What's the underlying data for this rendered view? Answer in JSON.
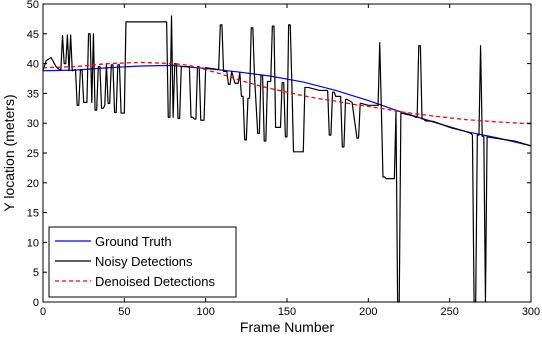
{
  "chart_data": {
    "type": "line",
    "title": "",
    "xlabel": "Frame Number",
    "ylabel": "Y location (meters)",
    "xlim": [
      0,
      300
    ],
    "ylim": [
      0,
      50
    ],
    "xticks": [
      0,
      50,
      100,
      150,
      200,
      250,
      300
    ],
    "yticks": [
      0,
      5,
      10,
      15,
      20,
      25,
      30,
      35,
      40,
      45,
      50
    ],
    "grid": false,
    "legend_position": "bottom-left",
    "series": [
      {
        "name": "Ground Truth",
        "color": "#0000ff",
        "style": "solid",
        "x": [
          0,
          20,
          40,
          60,
          80,
          90,
          100,
          120,
          140,
          160,
          180,
          200,
          220,
          240,
          260,
          280,
          300
        ],
        "y": [
          38.8,
          38.9,
          39.3,
          39.6,
          39.7,
          39.4,
          39.2,
          38.6,
          37.9,
          36.9,
          35.5,
          33.8,
          31.9,
          30.2,
          28.6,
          27.5,
          26.2
        ]
      },
      {
        "name": "Noisy Detections",
        "color": "#000000",
        "style": "solid",
        "x": [
          0,
          2,
          5,
          8,
          10,
          11,
          12,
          13,
          14,
          15,
          16,
          17,
          18,
          20,
          21,
          22,
          23,
          24,
          25,
          27,
          28,
          29,
          30,
          31,
          32,
          33,
          34,
          35,
          36,
          37,
          38,
          39,
          40,
          41,
          42,
          43,
          44,
          45,
          46,
          47,
          48,
          49,
          50,
          51,
          52,
          53,
          60,
          70,
          76,
          77,
          78,
          79,
          80,
          81,
          82,
          83,
          84,
          85,
          90,
          91,
          92,
          93,
          94,
          95,
          96,
          97,
          98,
          99,
          100,
          108,
          109,
          110,
          111,
          113,
          114,
          115,
          116,
          118,
          120,
          121,
          122,
          123,
          124,
          125,
          126,
          127,
          128,
          129,
          130,
          132,
          133,
          134,
          135,
          136,
          137,
          138,
          140,
          141,
          142,
          143,
          146,
          147,
          148,
          149,
          150,
          151,
          152,
          153,
          154,
          155,
          160,
          161,
          162,
          163,
          170,
          175,
          176,
          177,
          178,
          179,
          180,
          183,
          184,
          185,
          186,
          187,
          190,
          193,
          194,
          195,
          196,
          200,
          205,
          206,
          207,
          208,
          209,
          210,
          211,
          216,
          217,
          218,
          219,
          220,
          225,
          228,
          229,
          230,
          231,
          232,
          233,
          234,
          235,
          240,
          250,
          260,
          263,
          264,
          265,
          266,
          267,
          268,
          269,
          270,
          271,
          272,
          273,
          280,
          290,
          300
        ],
        "y": [
          38.8,
          40.5,
          41,
          39.5,
          39,
          39,
          44.7,
          40,
          40,
          44.8,
          38.8,
          44.8,
          38.8,
          39,
          33,
          33,
          39,
          39,
          33.5,
          33.5,
          45,
          45,
          33.5,
          45,
          32.2,
          32.2,
          39.5,
          39.5,
          32.5,
          32.5,
          33,
          40,
          33.3,
          33.3,
          39.8,
          39.8,
          31.8,
          31.8,
          39.8,
          39.8,
          31.7,
          31.7,
          31.7,
          47,
          47,
          47,
          47,
          47,
          47,
          31,
          31,
          48,
          31,
          40,
          40,
          30.8,
          30.8,
          39.5,
          39.5,
          31,
          31,
          30.7,
          30.7,
          39.5,
          39.5,
          30.5,
          30.5,
          30.5,
          39.3,
          39,
          46.5,
          46.5,
          38.7,
          38.7,
          36.5,
          36.5,
          38.7,
          36.7,
          36.7,
          38.5,
          34.5,
          34.5,
          27.2,
          27.2,
          34.2,
          34.2,
          46,
          46,
          38,
          28.3,
          28.3,
          38,
          38,
          27,
          27,
          37,
          37,
          46.3,
          46.3,
          29.3,
          29.3,
          36.8,
          36.8,
          27.7,
          27.7,
          46.5,
          46.5,
          36.5,
          25.2,
          25.2,
          25.2,
          36,
          36,
          36,
          35.5,
          35.5,
          28,
          28,
          35.2,
          35.2,
          34.5,
          34.5,
          26,
          26,
          34,
          34,
          33.5,
          27.5,
          27.5,
          33.3,
          33.3,
          33,
          33,
          33,
          43.5,
          32.5,
          21,
          21,
          20.7,
          20.7,
          32,
          0,
          0,
          31.7,
          31.4,
          31.2,
          31,
          31,
          43,
          43,
          30.7,
          30.7,
          30.4,
          30.3,
          29.3,
          28.6,
          28.3,
          28,
          0,
          0,
          28,
          28,
          43,
          27.8,
          27.8,
          0,
          27.7,
          27.4,
          27,
          26.2
        ]
      },
      {
        "name": "Denoised Detections",
        "color": "#ff0000",
        "style": "dashed",
        "x": [
          0,
          20,
          40,
          60,
          80,
          90,
          100,
          110,
          120,
          130,
          140,
          150,
          160,
          170,
          180,
          190,
          200,
          210,
          220,
          240,
          260,
          280,
          300
        ],
        "y": [
          39.3,
          39.5,
          40,
          40.2,
          40,
          39.7,
          39,
          38.2,
          37.3,
          36.5,
          35.8,
          35.2,
          34.6,
          34.1,
          33.7,
          33.2,
          32.8,
          32.4,
          31.9,
          31.2,
          30.6,
          30.2,
          29.9
        ]
      }
    ]
  }
}
